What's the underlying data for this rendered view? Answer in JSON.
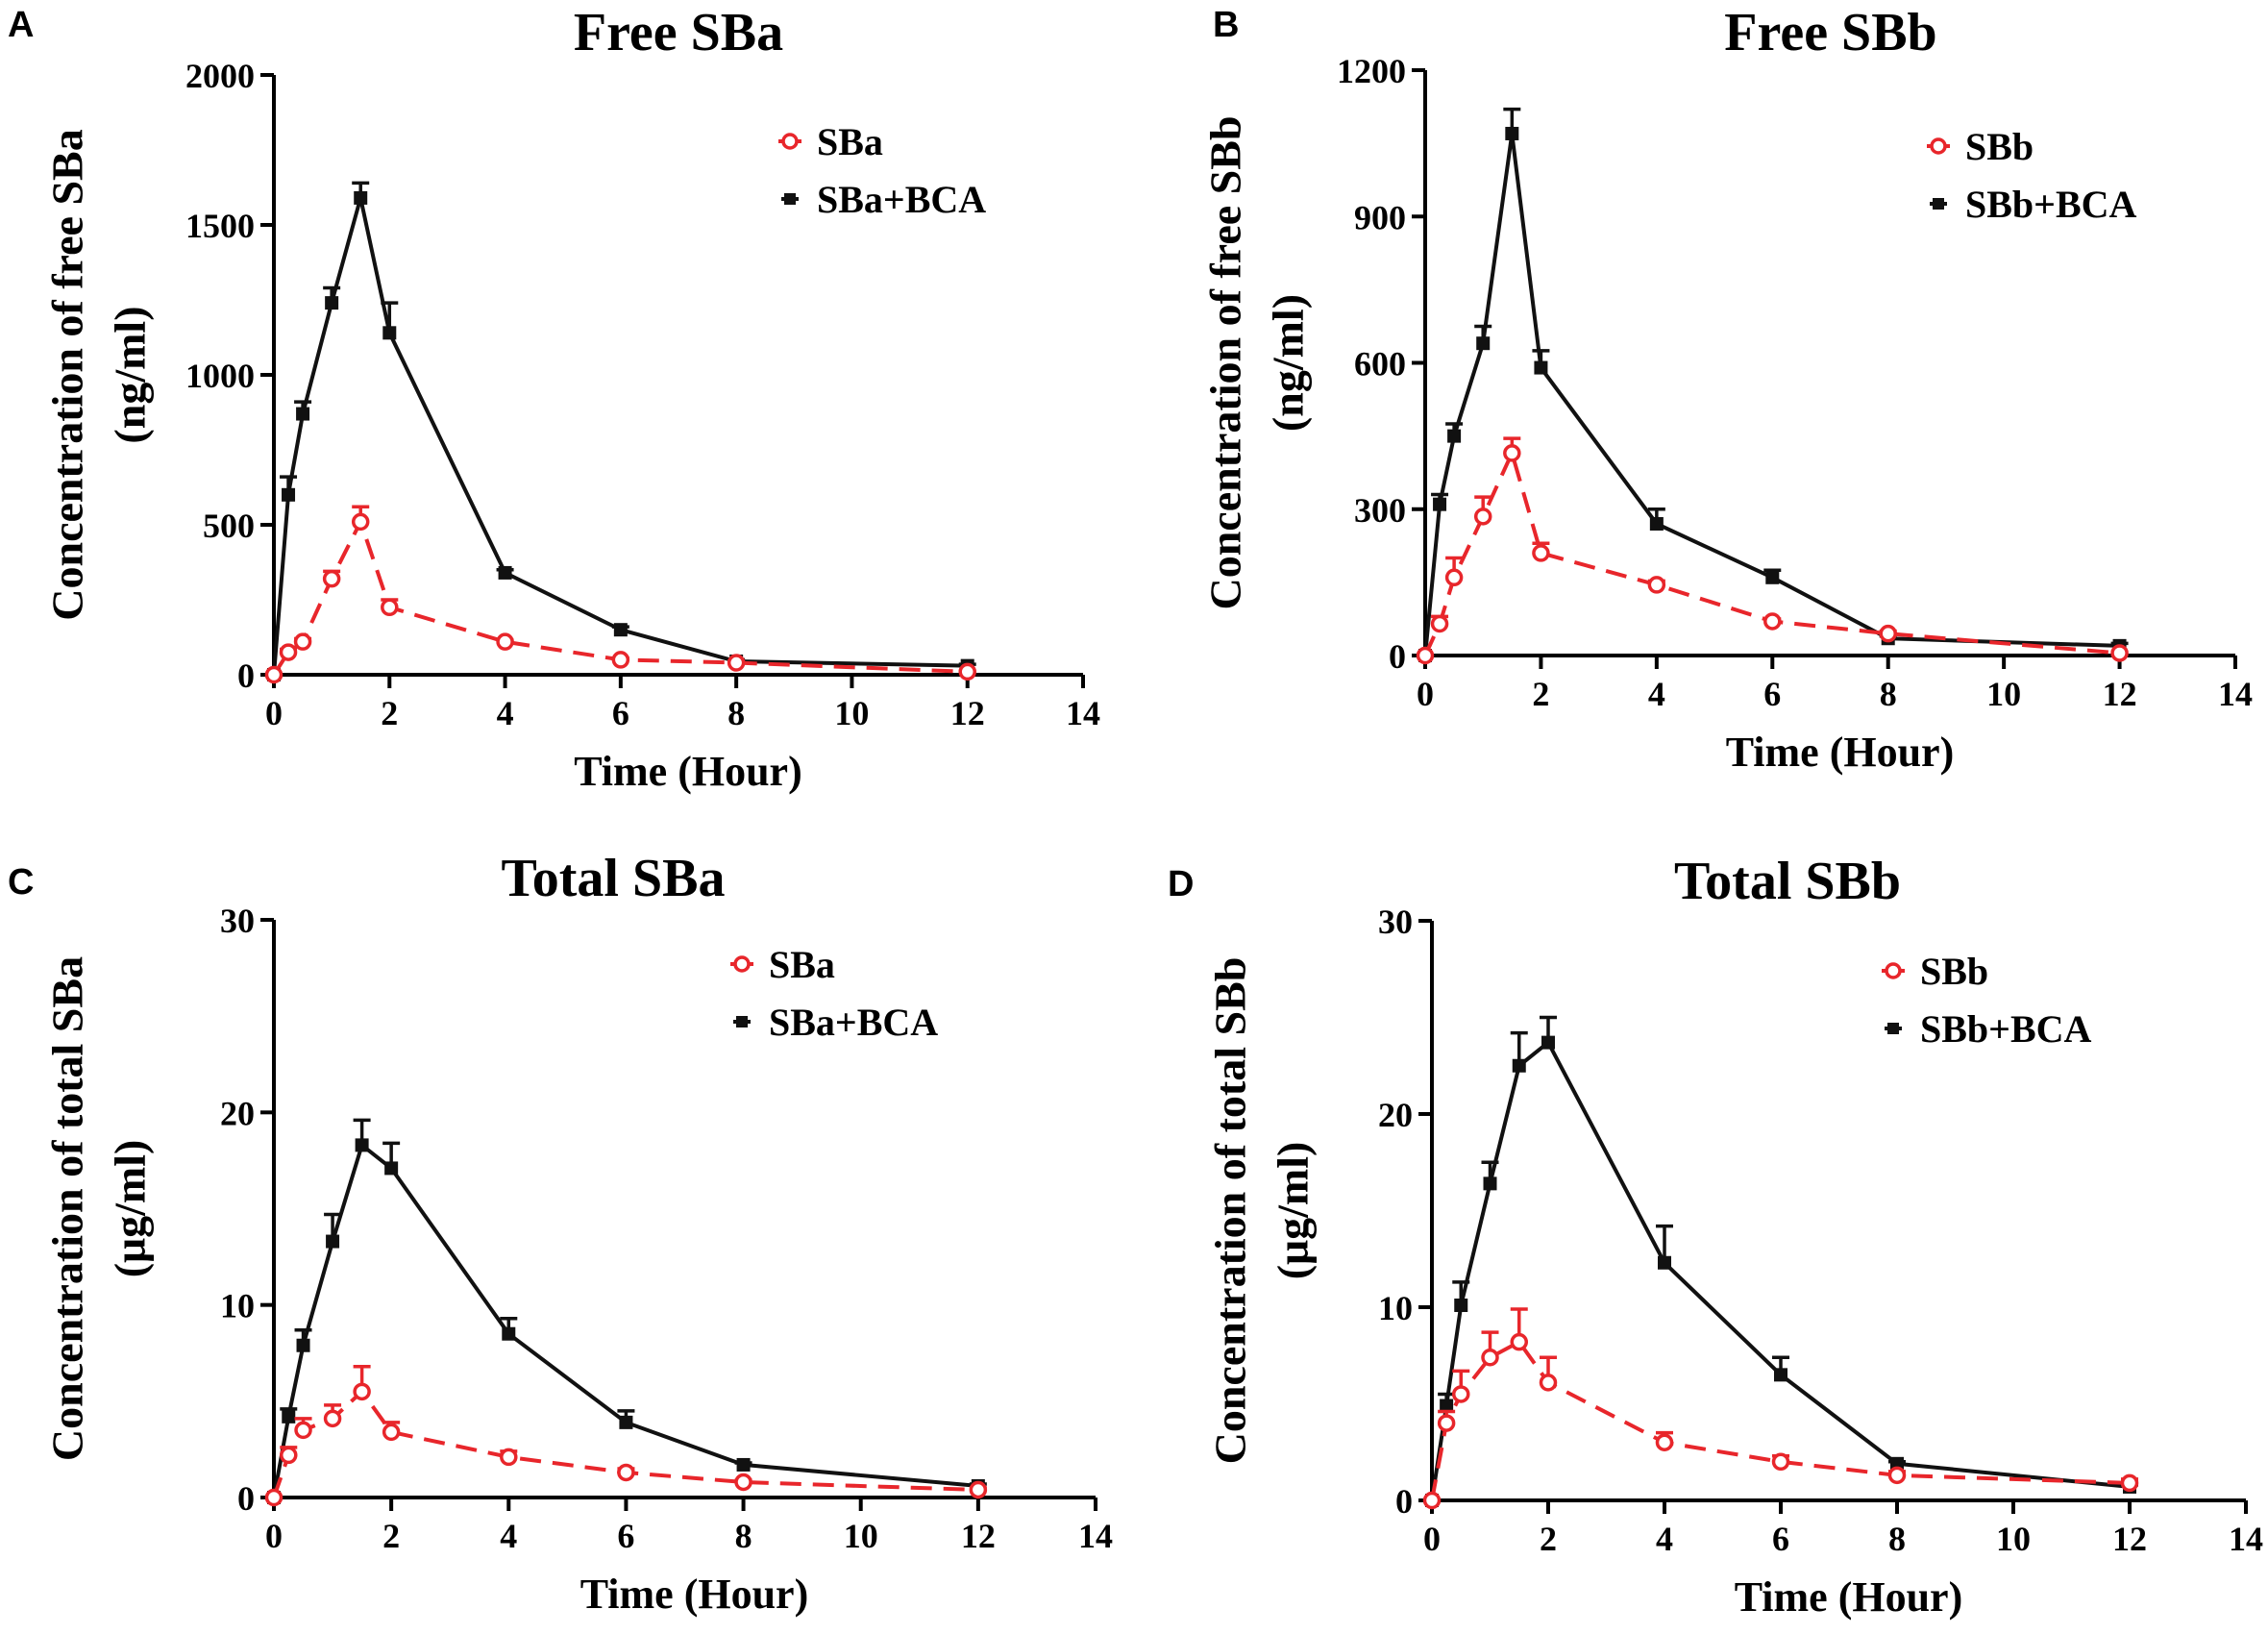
{
  "figure": {
    "colors": {
      "alone": "#e8262b",
      "bca": "#111111"
    },
    "legend_bca_suffix": "+BCA"
  },
  "chart_data": [
    {
      "type": "line",
      "panel": "A",
      "title": "Free SBa",
      "xlabel": "Time (Hour)",
      "ylabel": "Concentration of free SBa",
      "ylabel_unit": "(ng/ml)",
      "xlim": [
        0,
        14
      ],
      "ylim": [
        0,
        2000
      ],
      "xticks": [
        0,
        2,
        4,
        6,
        8,
        10,
        12,
        14
      ],
      "yticks": [
        0,
        500,
        1000,
        1500,
        2000
      ],
      "legend_position": "top-right",
      "series": [
        {
          "name": "SBa",
          "style": "dashed",
          "marker": "open-circle",
          "x": [
            0,
            0.25,
            0.5,
            1,
            1.5,
            2,
            4,
            6,
            8,
            12
          ],
          "y": [
            0,
            75,
            110,
            320,
            510,
            225,
            110,
            50,
            40,
            10
          ],
          "err": [
            0,
            10,
            10,
            25,
            50,
            25,
            5,
            5,
            5,
            2
          ]
        },
        {
          "name": "SBa+BCA",
          "style": "solid",
          "marker": "square",
          "x": [
            0,
            0.25,
            0.5,
            1,
            1.5,
            2,
            4,
            6,
            8,
            12
          ],
          "y": [
            0,
            600,
            870,
            1240,
            1590,
            1140,
            340,
            150,
            45,
            30
          ],
          "err": [
            0,
            60,
            40,
            50,
            50,
            100,
            10,
            10,
            5,
            5
          ]
        }
      ]
    },
    {
      "type": "line",
      "panel": "B",
      "title": "Free SBb",
      "xlabel": "Time (Hour)",
      "ylabel": "Concentration of free SBb",
      "ylabel_unit": "(ng/ml)",
      "xlim": [
        0,
        14
      ],
      "ylim": [
        0,
        1200
      ],
      "xticks": [
        0,
        2,
        4,
        6,
        8,
        10,
        12,
        14
      ],
      "yticks": [
        0,
        300,
        600,
        900,
        1200
      ],
      "legend_position": "top-right",
      "series": [
        {
          "name": "SBb",
          "style": "dashed",
          "marker": "open-circle",
          "x": [
            0,
            0.25,
            0.5,
            1,
            1.5,
            2,
            4,
            6,
            8,
            12
          ],
          "y": [
            0,
            65,
            160,
            285,
            415,
            210,
            145,
            70,
            45,
            5
          ],
          "err": [
            0,
            15,
            40,
            40,
            30,
            20,
            8,
            5,
            5,
            2
          ]
        },
        {
          "name": "SBb+BCA",
          "style": "solid",
          "marker": "square",
          "x": [
            0,
            0.25,
            0.5,
            1,
            1.5,
            2,
            4,
            6,
            8,
            12
          ],
          "y": [
            0,
            310,
            450,
            640,
            1070,
            590,
            270,
            160,
            35,
            20
          ],
          "err": [
            0,
            20,
            25,
            35,
            50,
            35,
            30,
            15,
            5,
            5
          ]
        }
      ]
    },
    {
      "type": "line",
      "panel": "C",
      "title": "Total SBa",
      "xlabel": "Time (Hour)",
      "ylabel": "Concentration of total SBa",
      "ylabel_unit": "(μg/ml)",
      "xlim": [
        0,
        14
      ],
      "ylim": [
        0,
        30
      ],
      "xticks": [
        0,
        2,
        4,
        6,
        8,
        10,
        12,
        14
      ],
      "yticks": [
        0,
        10,
        20,
        30
      ],
      "legend_position": "top-right",
      "series": [
        {
          "name": "SBa",
          "style": "dashed",
          "marker": "open-circle",
          "x": [
            0,
            0.25,
            0.5,
            1,
            1.5,
            2,
            4,
            6,
            8,
            12
          ],
          "y": [
            0,
            2.2,
            3.5,
            4.1,
            5.5,
            3.4,
            2.1,
            1.3,
            0.8,
            0.4
          ],
          "err": [
            0,
            0.4,
            0.6,
            0.7,
            1.3,
            0.5,
            0.3,
            0.2,
            0.1,
            0.1
          ]
        },
        {
          "name": "SBa+BCA",
          "style": "solid",
          "marker": "square",
          "x": [
            0,
            0.25,
            0.5,
            1,
            1.5,
            2,
            4,
            6,
            8,
            12
          ],
          "y": [
            0,
            4.2,
            7.9,
            13.3,
            18.3,
            17.1,
            8.5,
            3.9,
            1.7,
            0.6
          ],
          "err": [
            0,
            0.4,
            0.8,
            1.4,
            1.3,
            1.3,
            0.8,
            0.6,
            0.1,
            0.1
          ]
        }
      ]
    },
    {
      "type": "line",
      "panel": "D",
      "title": "Total SBb",
      "xlabel": "Time (Hour)",
      "ylabel": "Concentration of total SBb",
      "ylabel_unit": "(μg/ml)",
      "xlim": [
        0,
        14
      ],
      "ylim": [
        0,
        30
      ],
      "xticks": [
        0,
        2,
        4,
        6,
        8,
        10,
        12,
        14
      ],
      "yticks": [
        0,
        10,
        20,
        30
      ],
      "legend_position": "top-right",
      "series": [
        {
          "name": "SBb",
          "style": "dashed",
          "marker": "open-circle",
          "x": [
            0,
            0.25,
            0.5,
            1,
            1.5,
            2,
            4,
            6,
            8,
            12
          ],
          "y": [
            0,
            4.0,
            5.5,
            7.4,
            8.2,
            6.1,
            3.0,
            2.0,
            1.3,
            0.9
          ],
          "err": [
            0,
            0.6,
            1.2,
            1.3,
            1.7,
            1.3,
            0.5,
            0.3,
            0.2,
            0.2
          ]
        },
        {
          "name": "SBb+BCA",
          "style": "solid",
          "marker": "square",
          "x": [
            0,
            0.25,
            0.5,
            1,
            1.5,
            2,
            4,
            6,
            8,
            12
          ],
          "y": [
            0,
            4.9,
            10.1,
            16.4,
            22.5,
            23.7,
            12.3,
            6.5,
            1.9,
            0.7
          ],
          "err": [
            0,
            0.6,
            1.2,
            1.1,
            1.7,
            1.3,
            1.9,
            0.9,
            0.1,
            0.1
          ]
        }
      ]
    }
  ]
}
